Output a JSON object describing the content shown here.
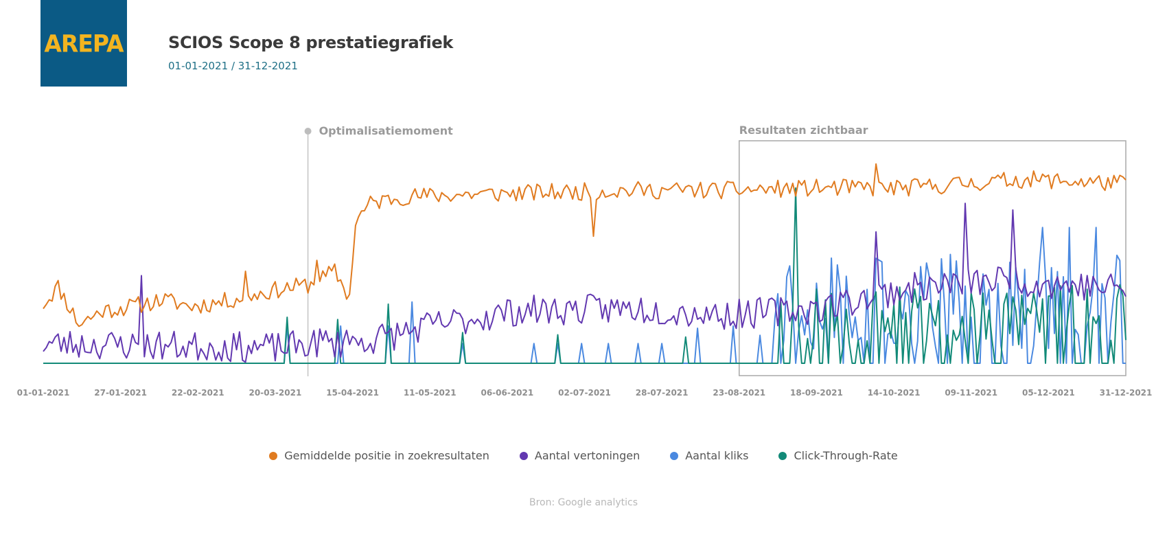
{
  "header": {
    "logo_text": "AREPA",
    "title": "SCIOS Scope 8 prestatiegrafiek",
    "subtitle": "01-01-2021 / 31-12-2021"
  },
  "colors": {
    "logo_bg": "#0b5a85",
    "logo_text": "#f2b420",
    "position": "#e07b20",
    "impressions": "#6238b0",
    "clicks": "#4a89e0",
    "ctr": "#128a78"
  },
  "footer": {
    "source": "Bron: Google analytics"
  },
  "chart_data": {
    "type": "line",
    "title": "SCIOS Scope 8 prestatiegrafiek",
    "x_ticks": [
      "01-01-2021",
      "27-01-2021",
      "22-02-2021",
      "20-03-2021",
      "15-04-2021",
      "11-05-2021",
      "06-06-2021",
      "02-07-2021",
      "28-07-2021",
      "23-08-2021",
      "18-09-2021",
      "14-10-2021",
      "09-11-2021",
      "05-12-2021",
      "31-12-2021"
    ],
    "x_range": [
      "01-01-2021",
      "31-12-2021"
    ],
    "y_range": [
      0,
      100
    ],
    "y_axis_visible": false,
    "grid": false,
    "legend_position": "bottom",
    "series": [
      {
        "name": "Gemiddelde positie in zoekresultaten",
        "color_key": "position",
        "anchors_day_value": [
          [
            0,
            27
          ],
          [
            5,
            35
          ],
          [
            12,
            18
          ],
          [
            20,
            24
          ],
          [
            30,
            26
          ],
          [
            40,
            29
          ],
          [
            50,
            26
          ],
          [
            60,
            28
          ],
          [
            70,
            31
          ],
          [
            80,
            34
          ],
          [
            90,
            36
          ],
          [
            98,
            42
          ],
          [
            103,
            30
          ],
          [
            105,
            65
          ],
          [
            110,
            73
          ],
          [
            120,
            76
          ],
          [
            140,
            77
          ],
          [
            170,
            78
          ],
          [
            200,
            79
          ],
          [
            230,
            79
          ],
          [
            260,
            80
          ],
          [
            290,
            80
          ],
          [
            310,
            82
          ],
          [
            330,
            84
          ],
          [
            364,
            82
          ]
        ],
        "noise": 4,
        "spikes_day_value": [
          [
            68,
            42
          ],
          [
            92,
            47
          ],
          [
            185,
            58
          ],
          [
            280,
            91
          ]
        ]
      },
      {
        "name": "Aantal vertoningen",
        "color_key": "impressions",
        "anchors_day_value": [
          [
            0,
            9
          ],
          [
            40,
            8
          ],
          [
            80,
            7
          ],
          [
            95,
            10
          ],
          [
            100,
            8
          ],
          [
            115,
            12
          ],
          [
            130,
            17
          ],
          [
            160,
            24
          ],
          [
            200,
            25
          ],
          [
            230,
            22
          ],
          [
            260,
            25
          ],
          [
            290,
            34
          ],
          [
            320,
            38
          ],
          [
            364,
            34
          ]
        ],
        "noise": 7,
        "spikes_day_value": [
          [
            33,
            40
          ],
          [
            102,
            15
          ],
          [
            280,
            60
          ],
          [
            310,
            73
          ],
          [
            326,
            70
          ]
        ]
      },
      {
        "name": "Aantal kliks",
        "color_key": "clicks",
        "baseline_value": 0,
        "active_period_start_day": 240,
        "active_period_level": 28,
        "noise": 22,
        "spikes_day_value": [
          [
            82,
            17
          ],
          [
            100,
            17
          ],
          [
            116,
            17
          ],
          [
            124,
            28
          ],
          [
            141,
            9
          ],
          [
            165,
            9
          ],
          [
            173,
            9
          ],
          [
            181,
            9
          ],
          [
            190,
            9
          ],
          [
            200,
            9
          ],
          [
            208,
            9
          ],
          [
            220,
            16
          ],
          [
            232,
            17
          ],
          [
            265,
            48
          ],
          [
            336,
            62
          ],
          [
            345,
            62
          ],
          [
            354,
            62
          ]
        ]
      },
      {
        "name": "Click-Through-Rate",
        "color_key": "ctr",
        "baseline_value": 0,
        "active_period_start_day": 245,
        "active_period_level": 22,
        "noise": 14,
        "spikes_day_value": [
          [
            82,
            21
          ],
          [
            99,
            20
          ],
          [
            116,
            27
          ],
          [
            141,
            14
          ],
          [
            173,
            13
          ],
          [
            216,
            12
          ],
          [
            253,
            80
          ]
        ]
      }
    ],
    "annotations": [
      {
        "label": "Optimalisatiemoment",
        "type": "vertical-line",
        "at_day": 89
      },
      {
        "label": "Resultaten zichtbaar",
        "type": "box",
        "from_day": 234,
        "to_day": 365
      }
    ]
  }
}
